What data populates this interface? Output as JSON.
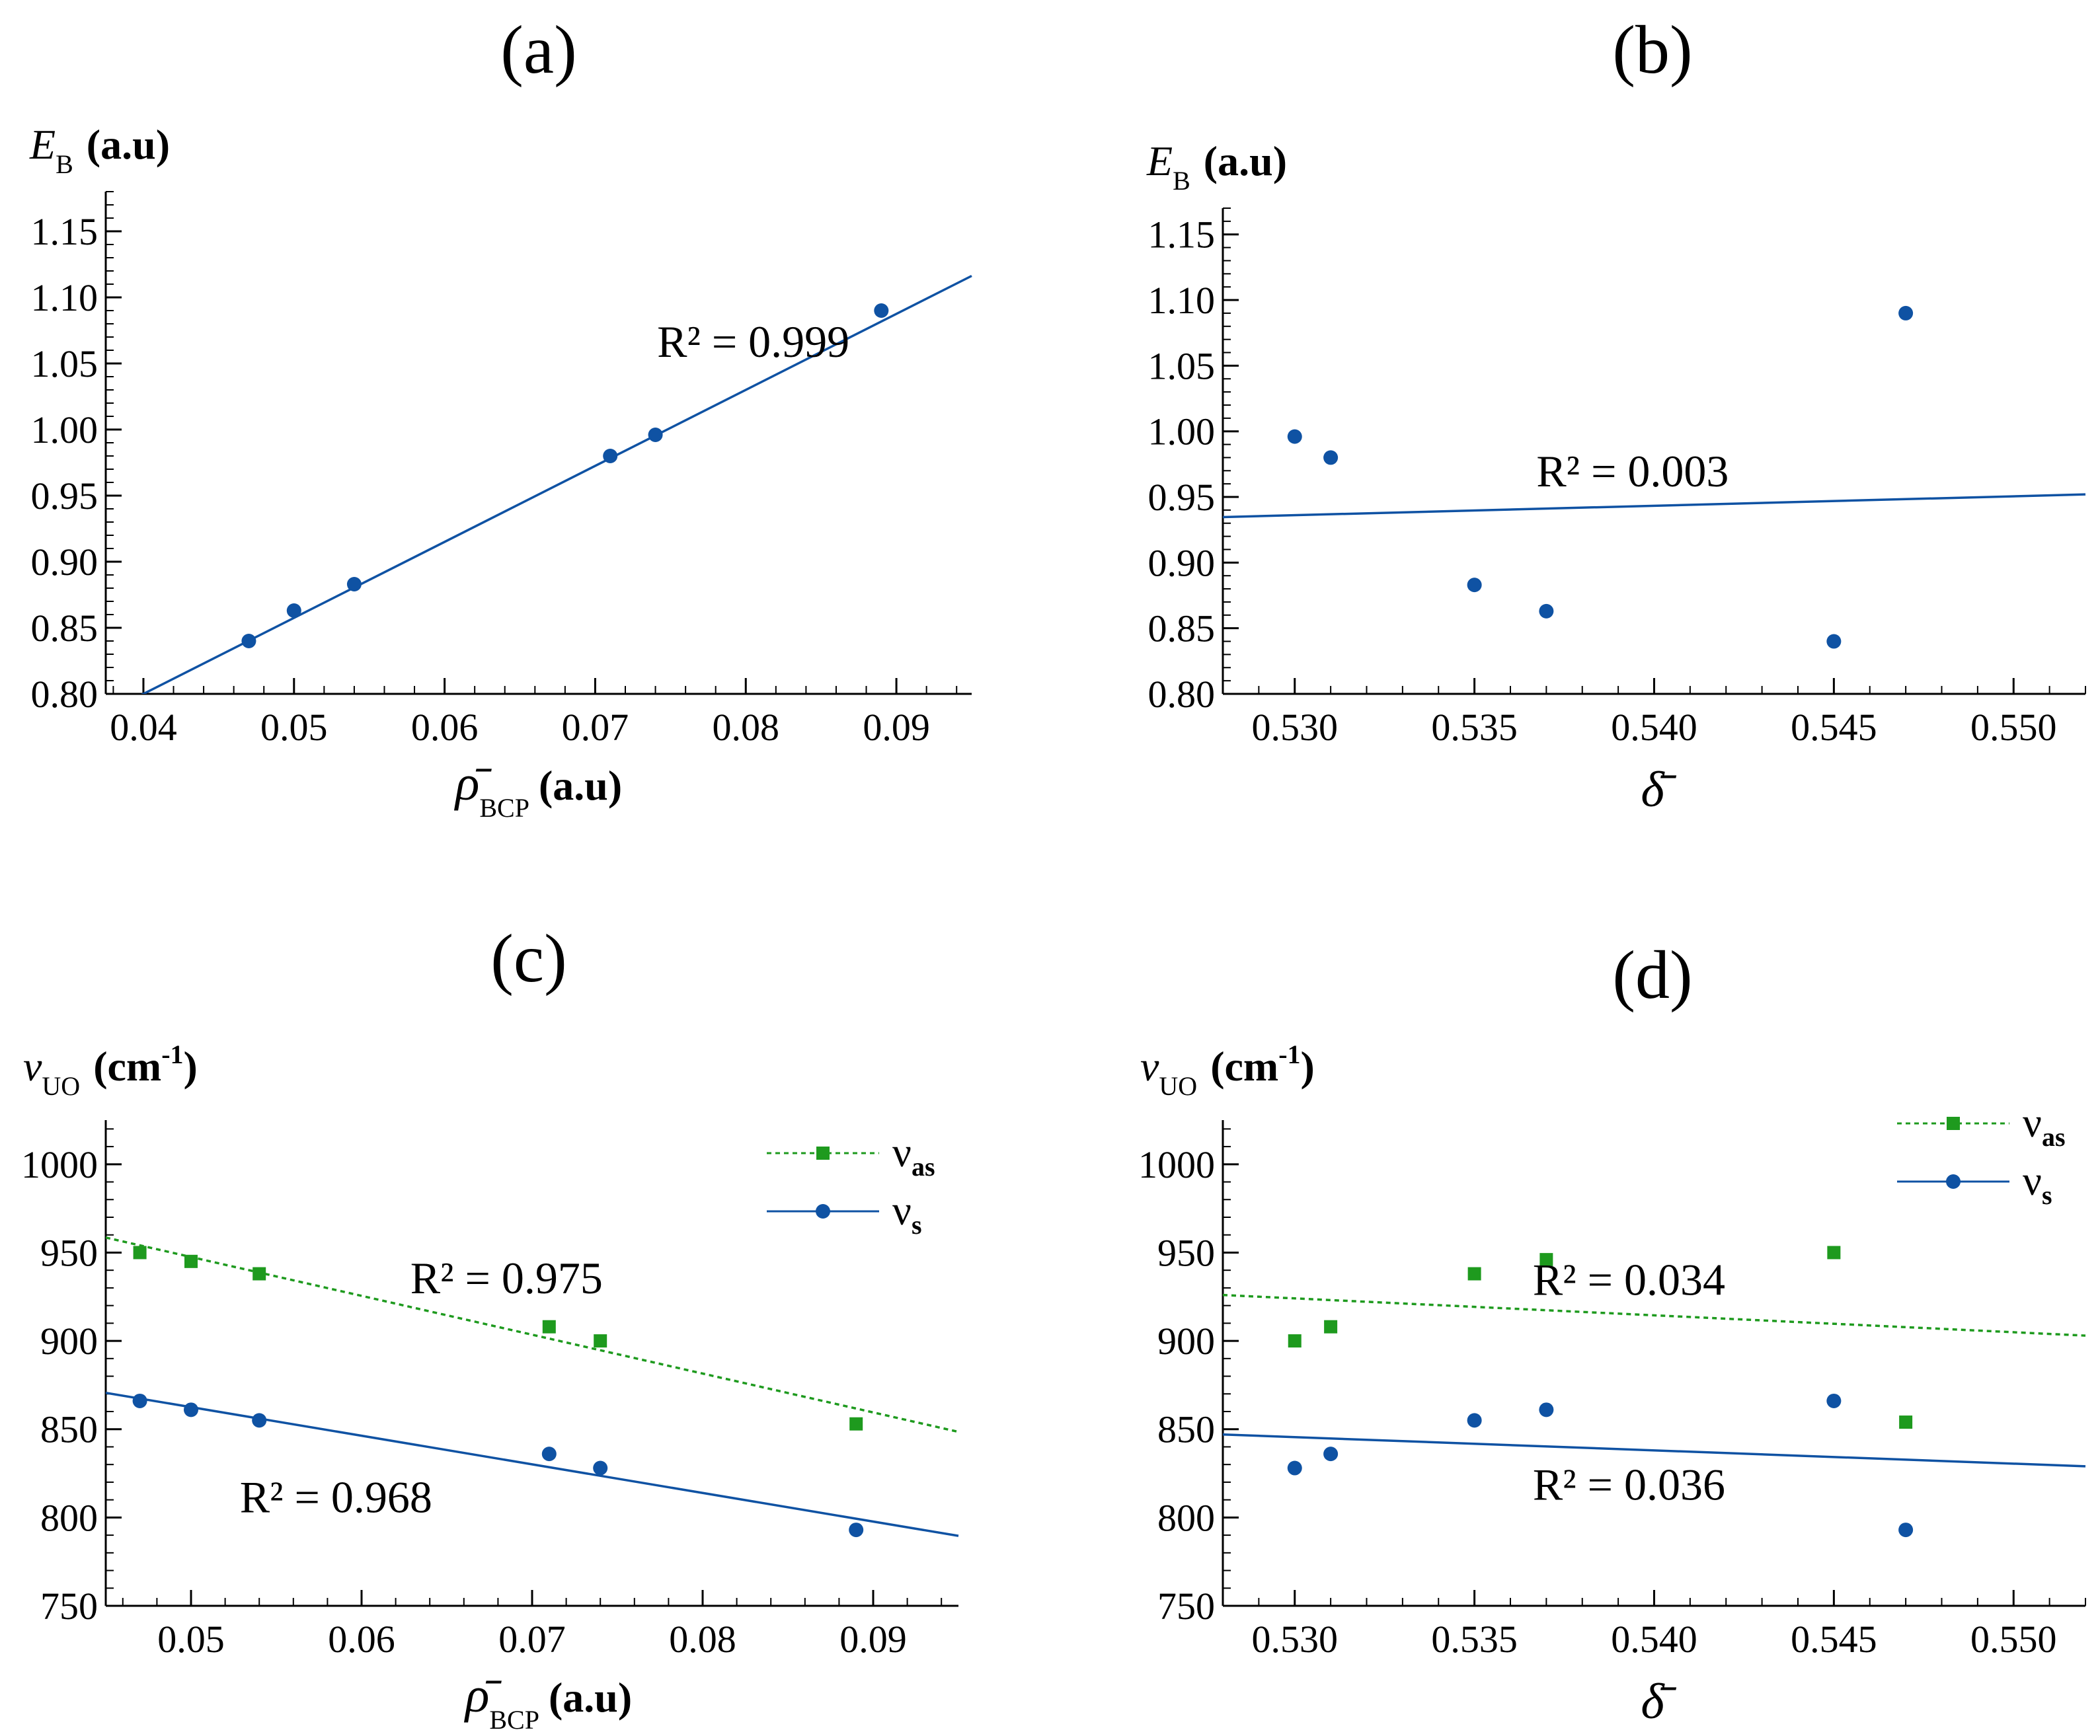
{
  "colors": {
    "blue": "#0f52a3",
    "green": "#1e9a1e",
    "axis": "#000000",
    "background": "#ffffff"
  },
  "chart_data": [
    {
      "id": "a",
      "panel_label": "(a)",
      "type": "scatter",
      "ylabel": {
        "symbol": "E",
        "sub": "B",
        "unit": "(a.u)"
      },
      "xlabel": {
        "symbol": "ρ̄",
        "sub": "BCP",
        "unit": "(a.u)"
      },
      "xlim": [
        0.0375,
        0.095
      ],
      "ylim": [
        0.8,
        1.18
      ],
      "xticks": [
        0.04,
        0.05,
        0.06,
        0.07,
        0.08,
        0.09
      ],
      "xtick_labels": [
        "0.04",
        "0.05",
        "0.06",
        "0.07",
        "0.08",
        "0.09"
      ],
      "yticks": [
        0.8,
        0.85,
        0.9,
        0.95,
        1.0,
        1.05,
        1.1,
        1.15
      ],
      "ytick_labels": [
        "0.80",
        "0.85",
        "0.90",
        "0.95",
        "1.00",
        "1.05",
        "1.10",
        "1.15"
      ],
      "series": [
        {
          "name": "E_B",
          "marker": "circle",
          "color": "blue",
          "x": [
            0.047,
            0.05,
            0.054,
            0.071,
            0.074,
            0.089
          ],
          "y": [
            0.84,
            0.863,
            0.883,
            0.98,
            0.996,
            1.09
          ],
          "fit": {
            "slope": 5.75,
            "intercept": 0.57,
            "x": [
              0.0375,
              0.095
            ],
            "style": "solid"
          },
          "r2_label": {
            "text": "R² = 0.999",
            "x": 0.0805,
            "y": 1.055
          }
        }
      ]
    },
    {
      "id": "b",
      "panel_label": "(b)",
      "type": "scatter",
      "ylabel": {
        "symbol": "E",
        "sub": "B",
        "unit": "(a.u)"
      },
      "xlabel": {
        "symbol": "δ̄",
        "sub": "",
        "unit": ""
      },
      "xlim": [
        0.528,
        0.552
      ],
      "ylim": [
        0.8,
        1.17
      ],
      "xticks": [
        0.53,
        0.535,
        0.54,
        0.545,
        0.55
      ],
      "xtick_labels": [
        "0.530",
        "0.535",
        "0.540",
        "0.545",
        "0.550"
      ],
      "yticks": [
        0.8,
        0.85,
        0.9,
        0.95,
        1.0,
        1.05,
        1.1,
        1.15
      ],
      "ytick_labels": [
        "0.80",
        "0.85",
        "0.90",
        "0.95",
        "1.00",
        "1.05",
        "1.10",
        "1.15"
      ],
      "series": [
        {
          "name": "E_B",
          "marker": "circle",
          "color": "blue",
          "x": [
            0.53,
            0.531,
            0.535,
            0.537,
            0.545,
            0.547
          ],
          "y": [
            0.996,
            0.98,
            0.883,
            0.863,
            0.84,
            1.09
          ],
          "fit": {
            "slope": 0.72,
            "intercept": 0.5545,
            "x": [
              0.528,
              0.552
            ],
            "style": "solid"
          },
          "r2_label": {
            "text": "R² = 0.003",
            "x": 0.5394,
            "y": 0.958
          }
        }
      ]
    },
    {
      "id": "c",
      "panel_label": "(c)",
      "type": "scatter",
      "ylabel": {
        "symbol": "ν",
        "sub": "UO",
        "unit": "(cm",
        "unit_sup": "-1",
        "unit_end": ")"
      },
      "xlabel": {
        "symbol": "ρ̄",
        "sub": "BCP",
        "unit": "(a.u)"
      },
      "xlim": [
        0.045,
        0.095
      ],
      "ylim": [
        750,
        1025
      ],
      "xticks": [
        0.05,
        0.06,
        0.07,
        0.08,
        0.09
      ],
      "xtick_labels": [
        "0.05",
        "0.06",
        "0.07",
        "0.08",
        "0.09"
      ],
      "yticks": [
        750,
        800,
        850,
        900,
        950,
        1000
      ],
      "ytick_labels": [
        "750",
        "800",
        "850",
        "900",
        "950",
        "1000"
      ],
      "legend": {
        "position": "top-right",
        "entries": [
          {
            "symbol": "ν",
            "sub": "as"
          },
          {
            "symbol": "ν",
            "sub": "s"
          }
        ]
      },
      "series": [
        {
          "name": "ν_as",
          "marker": "square",
          "color": "green",
          "x": [
            0.047,
            0.05,
            0.054,
            0.071,
            0.074,
            0.089
          ],
          "y": [
            950,
            945,
            938,
            908,
            900,
            853
          ],
          "fit": {
            "slope": -2200,
            "intercept": 1057.5,
            "x": [
              0.045,
              0.095
            ],
            "style": "dotted"
          },
          "r2_label": {
            "text": "R² = 0.975",
            "x": 0.0685,
            "y": 927
          }
        },
        {
          "name": "ν_s",
          "marker": "circle",
          "color": "blue",
          "x": [
            0.047,
            0.05,
            0.054,
            0.071,
            0.074,
            0.089
          ],
          "y": [
            866,
            861,
            855,
            836,
            828,
            793
          ],
          "fit": {
            "slope": -1620,
            "intercept": 943.5,
            "x": [
              0.045,
              0.095
            ],
            "style": "solid"
          },
          "r2_label": {
            "text": "R² = 0.968",
            "x": 0.0585,
            "y": 803
          }
        }
      ]
    },
    {
      "id": "d",
      "panel_label": "(d)",
      "type": "scatter",
      "ylabel": {
        "symbol": "ν",
        "sub": "UO",
        "unit": "(cm",
        "unit_sup": "-1",
        "unit_end": ")"
      },
      "xlabel": {
        "symbol": "δ̄",
        "sub": "",
        "unit": ""
      },
      "xlim": [
        0.528,
        0.552
      ],
      "ylim": [
        750,
        1025
      ],
      "xticks": [
        0.53,
        0.535,
        0.54,
        0.545,
        0.55
      ],
      "xtick_labels": [
        "0.530",
        "0.535",
        "0.540",
        "0.545",
        "0.550"
      ],
      "yticks": [
        750,
        800,
        850,
        900,
        950,
        1000
      ],
      "ytick_labels": [
        "750",
        "800",
        "850",
        "900",
        "950",
        "1000"
      ],
      "legend": {
        "position": "top-right",
        "entries": [
          {
            "symbol": "ν",
            "sub": "as"
          },
          {
            "symbol": "ν",
            "sub": "s"
          }
        ]
      },
      "series": [
        {
          "name": "ν_as",
          "marker": "square",
          "color": "green",
          "x": [
            0.53,
            0.531,
            0.535,
            0.537,
            0.545,
            0.547
          ],
          "y": [
            900,
            908,
            938,
            946,
            950,
            854
          ],
          "fit": {
            "slope": -958,
            "intercept": 1431.8,
            "x": [
              0.528,
              0.552
            ],
            "style": "dotted"
          },
          "r2_label": {
            "text": "R² = 0.034",
            "x": 0.5393,
            "y": 926
          }
        },
        {
          "name": "ν_s",
          "marker": "circle",
          "color": "blue",
          "x": [
            0.53,
            0.531,
            0.535,
            0.537,
            0.545,
            0.547
          ],
          "y": [
            828,
            836,
            855,
            861,
            866,
            793
          ],
          "fit": {
            "slope": -750,
            "intercept": 1243,
            "x": [
              0.528,
              0.552
            ],
            "style": "solid"
          },
          "r2_label": {
            "text": "R² = 0.036",
            "x": 0.5393,
            "y": 810
          }
        }
      ]
    }
  ]
}
